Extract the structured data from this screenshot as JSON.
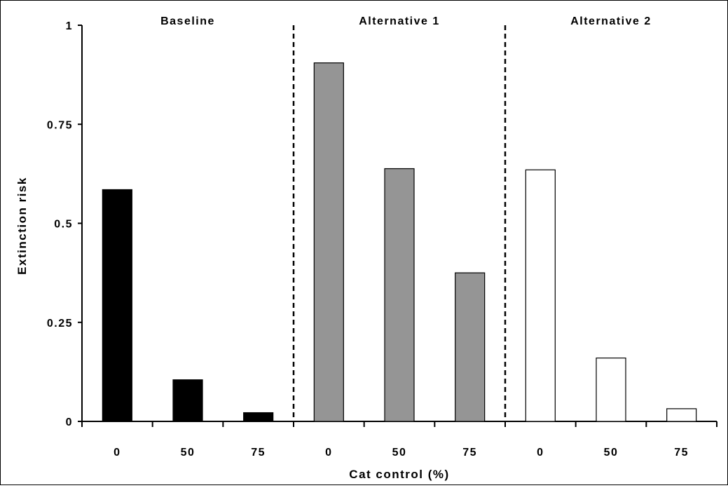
{
  "chart_data": {
    "type": "bar",
    "title": "",
    "xlabel": "Cat control (%)",
    "ylabel": "Extinction risk",
    "ylim": [
      0,
      1
    ],
    "yticks": [
      0,
      0.25,
      0.5,
      0.75,
      1
    ],
    "ytick_labels": [
      "0",
      "0.25",
      "0.5",
      "0.75",
      "1"
    ],
    "grid": false,
    "legend": "none",
    "groups": [
      {
        "name": "Baseline",
        "color": "#000000",
        "categories": [
          "0",
          "50",
          "75"
        ],
        "values": [
          0.585,
          0.105,
          0.022
        ]
      },
      {
        "name": "Alternative 1",
        "color": "#959595",
        "categories": [
          "0",
          "50",
          "75"
        ],
        "values": [
          0.905,
          0.638,
          0.375
        ]
      },
      {
        "name": "Alternative 2",
        "color": "#ffffff",
        "categories": [
          "0",
          "50",
          "75"
        ],
        "values": [
          0.635,
          0.16,
          0.032
        ]
      }
    ]
  }
}
